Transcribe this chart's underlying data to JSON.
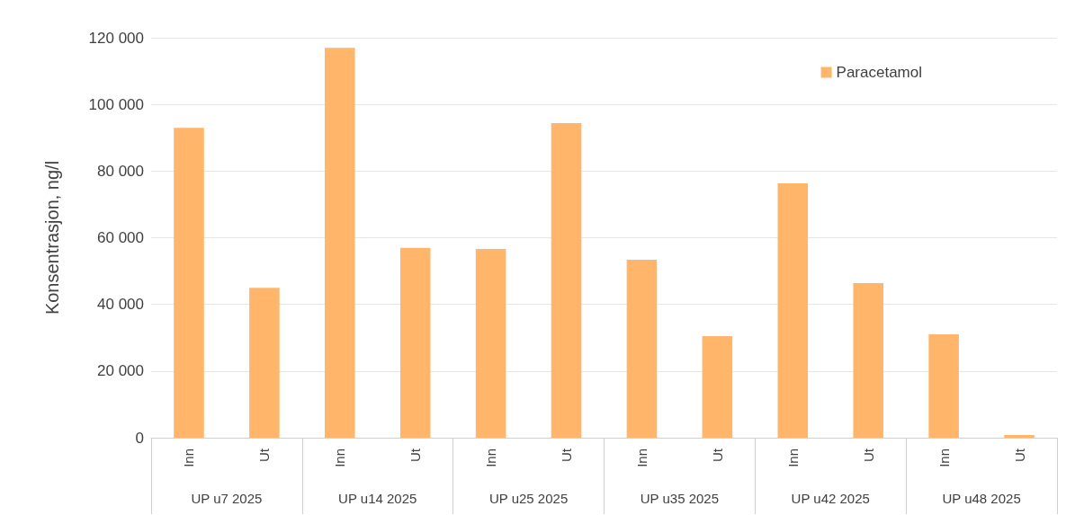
{
  "chart_data": {
    "type": "bar",
    "ylabel": "Konsentrasjon, ng/l",
    "categories": [
      "Inn",
      "Ut",
      "Inn",
      "Ut",
      "Inn",
      "Ut",
      "Inn",
      "Ut",
      "Inn",
      "Ut",
      "Inn",
      "Ut"
    ],
    "annotations": [
      "UP u7 2025",
      "UP u14 2025",
      "UP u25 2025",
      "UP u35 2025",
      "UP u42 2025",
      "UP u48 2025"
    ],
    "series": [
      {
        "name": "Paracetamol",
        "color": "#ffb66b",
        "values": [
          93000,
          45000,
          117000,
          57000,
          56600,
          94400,
          53400,
          30500,
          76300,
          46400,
          31000,
          800
        ]
      }
    ],
    "ylim": [
      0,
      120000
    ],
    "yticks": [
      0,
      20000,
      40000,
      60000,
      80000,
      100000,
      120000
    ],
    "grid": "y",
    "legend": "top right"
  }
}
